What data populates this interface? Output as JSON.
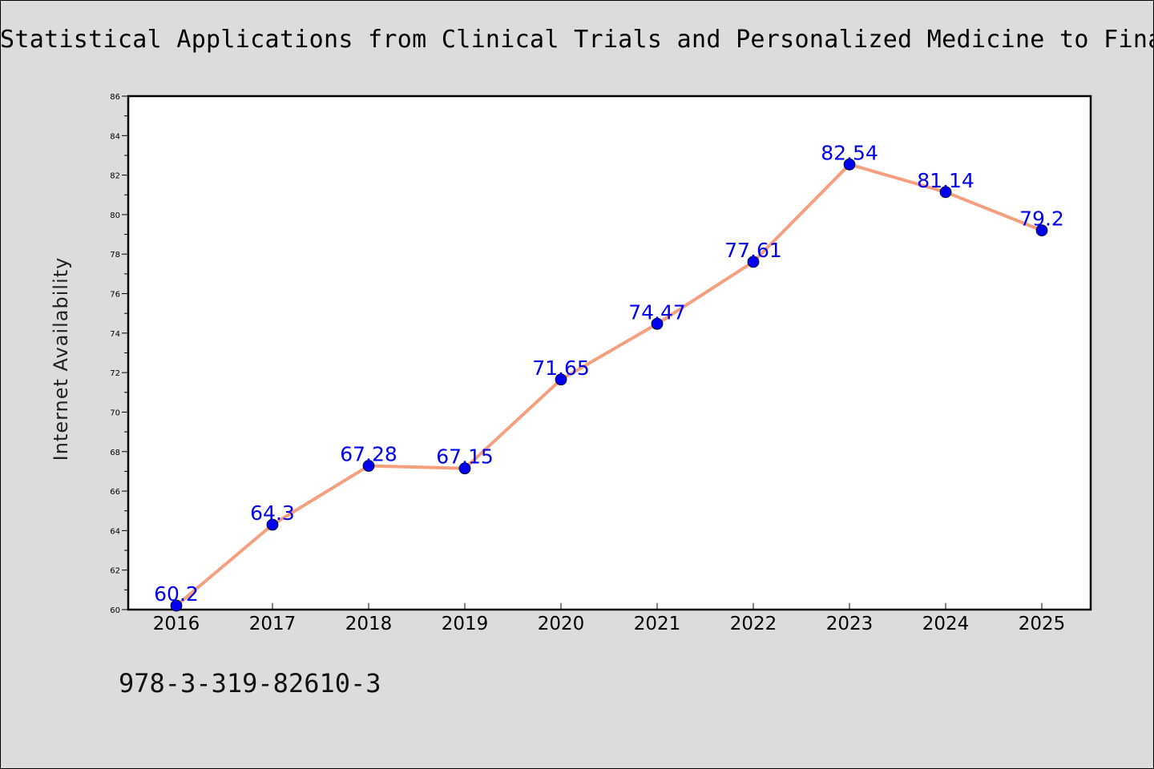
{
  "chart_data": {
    "type": "line",
    "title": "Statistical Applications from Clinical Trials and Personalized Medicine to Finan",
    "xlabel": "",
    "ylabel": "Internet Availability",
    "x": [
      "2016",
      "2017",
      "2018",
      "2019",
      "2020",
      "2021",
      "2022",
      "2023",
      "2024",
      "2025"
    ],
    "series": [
      {
        "values": [
          60.2,
          64.3,
          67.28,
          67.15,
          71.65,
          74.47,
          77.61,
          82.54,
          81.14,
          79.2
        ],
        "data_labels": [
          "60.2",
          "64.3",
          "67.28",
          "67.15",
          "71.65",
          "74.47",
          "77.61",
          "82.54",
          "81.14",
          "79.2"
        ],
        "line_color": "#f4a07e",
        "marker_color": "#0000ee",
        "label_color": "#0000ee"
      }
    ],
    "ylim": [
      60,
      86
    ],
    "yticks": [
      "60",
      "62",
      "64",
      "66",
      "68",
      "70",
      "72",
      "74",
      "76",
      "78",
      "80",
      "82",
      "84",
      "86"
    ],
    "grid": false,
    "legend": "none"
  },
  "footer": {
    "isbn": "978-3-319-82610-3"
  }
}
